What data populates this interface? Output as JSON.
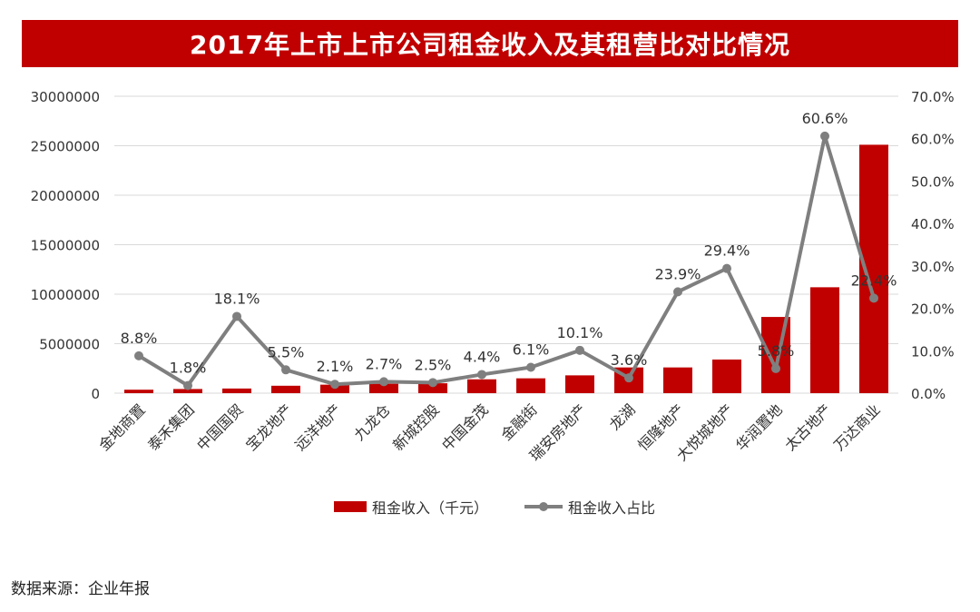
{
  "chart_data": {
    "type": "bar+line",
    "title": "2017年上市上市公司租金收入及其租营比对比情况",
    "categories": [
      "金地商置",
      "泰禾集团",
      "中国国贸",
      "宝龙地产",
      "远洋地产",
      "九龙仓",
      "新城控股",
      "中国金茂",
      "金融街",
      "瑞安房地产",
      "龙湖",
      "恒隆地产",
      "大悦城地产",
      "华润置地",
      "太古地产",
      "万达商业"
    ],
    "series": [
      {
        "name": "租金收入（千元）",
        "type": "bar",
        "axis": "left",
        "color": "#c00000",
        "values": [
          350000,
          420000,
          470000,
          750000,
          860000,
          950000,
          1000000,
          1400000,
          1500000,
          1800000,
          2600000,
          2600000,
          3400000,
          7700000,
          10700000,
          25100000
        ]
      },
      {
        "name": "租金收入占比",
        "type": "line",
        "axis": "right",
        "color": "#7f7f7f",
        "values": [
          8.8,
          1.8,
          18.1,
          5.5,
          2.1,
          2.7,
          2.5,
          4.4,
          6.1,
          10.1,
          3.6,
          23.9,
          29.4,
          5.8,
          60.6,
          22.4
        ],
        "labels": [
          "8.8%",
          "1.8%",
          "18.1%",
          "5.5%",
          "2.1%",
          "2.7%",
          "2.5%",
          "4.4%",
          "6.1%",
          "10.1%",
          "3.6%",
          "23.9%",
          "29.4%",
          "5.8%",
          "60.6%",
          "22.4%"
        ]
      }
    ],
    "y_left": {
      "min": 0,
      "max": 30000000,
      "ticks": [
        "0",
        "5000000",
        "10000000",
        "15000000",
        "20000000",
        "25000000",
        "30000000"
      ]
    },
    "y_right": {
      "min": 0,
      "max": 70,
      "ticks": [
        "0.0%",
        "10.0%",
        "20.0%",
        "30.0%",
        "40.0%",
        "50.0%",
        "60.0%",
        "70.0%"
      ]
    },
    "grid": true,
    "legend_position": "bottom"
  },
  "source_text": "数据来源：企业年报"
}
